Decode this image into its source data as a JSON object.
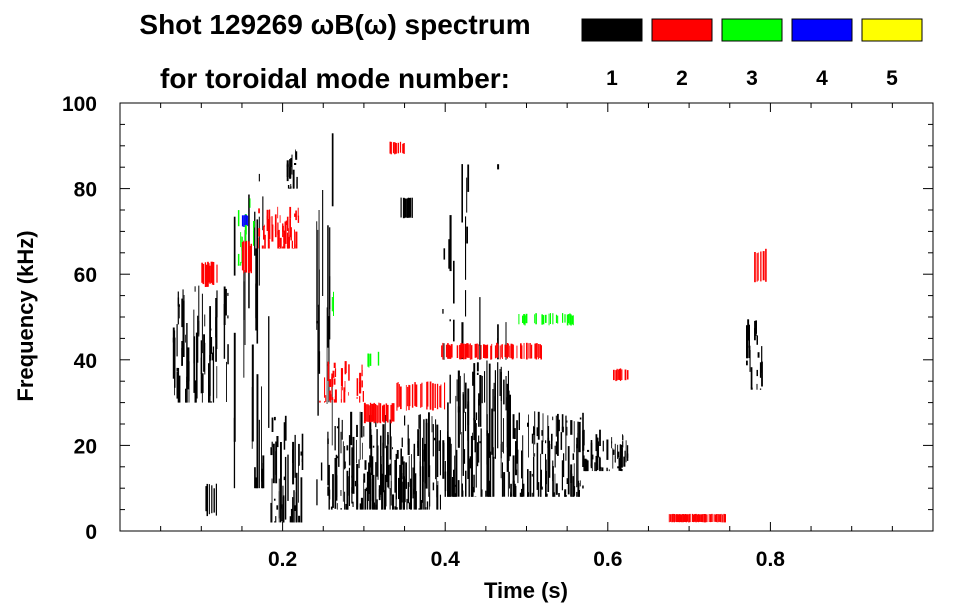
{
  "chart_data": {
    "type": "spectrogram",
    "title_line1": "Shot 129269 ωB(ω) spectrum",
    "title_line2": "for toroidal mode number:",
    "xlabel": "Time (s)",
    "ylabel": "Frequency (kHz)",
    "xlim": [
      0,
      1.0
    ],
    "ylim": [
      0,
      100
    ],
    "x_ticks": [
      0.2,
      0.4,
      0.6,
      0.8
    ],
    "x_tick_labels": [
      "0.2",
      "0.4",
      "0.6",
      "0.8"
    ],
    "y_ticks": [
      0,
      20,
      40,
      60,
      80,
      100
    ],
    "y_tick_labels": [
      "0",
      "20",
      "40",
      "60",
      "80",
      "100"
    ],
    "legend": [
      {
        "label": "1",
        "color": "#000000"
      },
      {
        "label": "2",
        "color": "#ff0000"
      },
      {
        "label": "3",
        "color": "#00ff00"
      },
      {
        "label": "4",
        "color": "#0000ff"
      },
      {
        "label": "5",
        "color": "#ffff00"
      }
    ],
    "regions": [
      {
        "mode": 1,
        "t": [
          0.065,
          0.135
        ],
        "f": [
          30,
          58
        ],
        "density": 0.55
      },
      {
        "mode": 1,
        "t": [
          0.105,
          0.125
        ],
        "f": [
          3,
          12
        ],
        "density": 0.35
      },
      {
        "mode": 1,
        "t": [
          0.14,
          0.165
        ],
        "f": [
          10,
          82
        ],
        "density": 0.22
      },
      {
        "mode": 1,
        "t": [
          0.165,
          0.185
        ],
        "f": [
          10,
          84
        ],
        "density": 0.3
      },
      {
        "mode": 1,
        "t": [
          0.185,
          0.225
        ],
        "f": [
          2,
          28
        ],
        "density": 0.6
      },
      {
        "mode": 1,
        "t": [
          0.205,
          0.22
        ],
        "f": [
          80,
          90
        ],
        "density": 0.6
      },
      {
        "mode": 1,
        "t": [
          0.24,
          0.26
        ],
        "f": [
          6,
          80
        ],
        "density": 0.18
      },
      {
        "mode": 1,
        "t": [
          0.252,
          0.262
        ],
        "f": [
          20,
          100
        ],
        "density": 0.3
      },
      {
        "mode": 1,
        "t": [
          0.255,
          0.395
        ],
        "f": [
          5,
          28
        ],
        "density": 0.7
      },
      {
        "mode": 1,
        "t": [
          0.345,
          0.36
        ],
        "f": [
          73,
          78
        ],
        "density": 0.7
      },
      {
        "mode": 1,
        "t": [
          0.395,
          0.48
        ],
        "f": [
          8,
          40
        ],
        "density": 0.75
      },
      {
        "mode": 1,
        "t": [
          0.395,
          0.48
        ],
        "f": [
          40,
          90
        ],
        "density": 0.1
      },
      {
        "mode": 1,
        "t": [
          0.48,
          0.57
        ],
        "f": [
          8,
          28
        ],
        "density": 0.65
      },
      {
        "mode": 1,
        "t": [
          0.57,
          0.625
        ],
        "f": [
          14,
          24
        ],
        "density": 0.6
      },
      {
        "mode": 1,
        "t": [
          0.77,
          0.79
        ],
        "f": [
          33,
          50
        ],
        "density": 0.55
      },
      {
        "mode": 2,
        "t": [
          0.1,
          0.12
        ],
        "f": [
          57,
          63
        ],
        "density": 0.5
      },
      {
        "mode": 2,
        "t": [
          0.15,
          0.165
        ],
        "f": [
          60,
          68
        ],
        "density": 0.5
      },
      {
        "mode": 2,
        "t": [
          0.17,
          0.22
        ],
        "f": [
          66,
          76
        ],
        "density": 0.55
      },
      {
        "mode": 2,
        "t": [
          0.245,
          0.3
        ],
        "f": [
          30,
          40
        ],
        "density": 0.4
      },
      {
        "mode": 2,
        "t": [
          0.3,
          0.34
        ],
        "f": [
          25,
          30
        ],
        "density": 0.6
      },
      {
        "mode": 2,
        "t": [
          0.34,
          0.4
        ],
        "f": [
          28,
          35
        ],
        "density": 0.45
      },
      {
        "mode": 2,
        "t": [
          0.395,
          0.52
        ],
        "f": [
          40,
          44
        ],
        "density": 0.5
      },
      {
        "mode": 2,
        "t": [
          0.605,
          0.625
        ],
        "f": [
          35,
          38
        ],
        "density": 0.6
      },
      {
        "mode": 2,
        "t": [
          0.675,
          0.745
        ],
        "f": [
          2,
          4
        ],
        "density": 0.8
      },
      {
        "mode": 2,
        "t": [
          0.78,
          0.795
        ],
        "f": [
          58,
          66
        ],
        "density": 0.5
      },
      {
        "mode": 2,
        "t": [
          0.33,
          0.35
        ],
        "f": [
          88,
          91
        ],
        "density": 0.5
      },
      {
        "mode": 3,
        "t": [
          0.145,
          0.165
        ],
        "f": [
          62,
          78
        ],
        "density": 0.3
      },
      {
        "mode": 3,
        "t": [
          0.3,
          0.32
        ],
        "f": [
          38,
          42
        ],
        "density": 0.4
      },
      {
        "mode": 3,
        "t": [
          0.49,
          0.56
        ],
        "f": [
          48,
          51
        ],
        "density": 0.35
      },
      {
        "mode": 3,
        "t": [
          0.25,
          0.265
        ],
        "f": [
          50,
          56
        ],
        "density": 0.3
      },
      {
        "mode": 4,
        "t": [
          0.15,
          0.158
        ],
        "f": [
          71,
          74
        ],
        "density": 0.5
      }
    ]
  }
}
